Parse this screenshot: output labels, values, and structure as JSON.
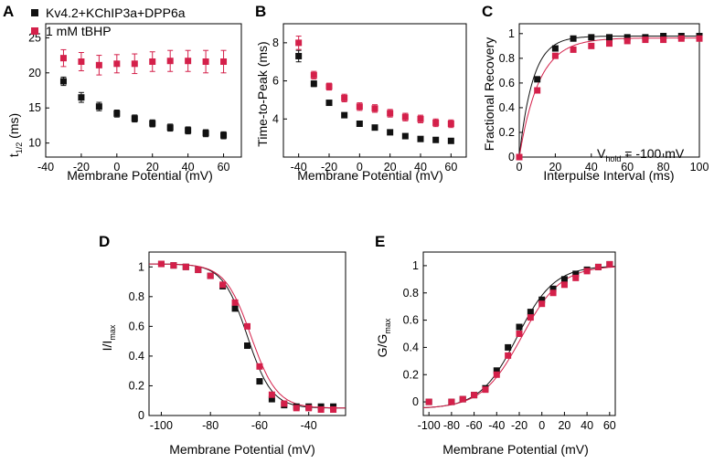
{
  "colors": {
    "control": "#111111",
    "tbhp": "#d4204a"
  },
  "legend": {
    "series_1": "Kv4.2+KChIP3a+DPP6a",
    "series_2": "1 mM tBHP"
  },
  "panels": {
    "A": {
      "letter": "A",
      "ylabel_main": "t",
      "ylabel_sub": "1/2",
      "ylabel_unit": " (ms)",
      "xlabel": "Membrane Potential (mV)"
    },
    "B": {
      "letter": "B",
      "ylabel": "Time-to-Peak (ms)",
      "xlabel": "Membrane Potential (mV)"
    },
    "C": {
      "letter": "C",
      "ylabel": "Fractional Recovery",
      "xlabel": "Interpulse Interval (ms)",
      "annotation_main": "V",
      "annotation_sub": "hold",
      "annotation_rest": " = -100 mV"
    },
    "D": {
      "letter": "D",
      "ylabel_main": "I/I",
      "ylabel_sub": "max",
      "xlabel": "Membrane Potential (mV)"
    },
    "E": {
      "letter": "E",
      "ylabel_main": "G/G",
      "ylabel_sub": "max",
      "xlabel": "Membrane Potential (mV)"
    }
  },
  "chart_data": [
    {
      "panel": "A",
      "type": "scatter",
      "xlim": [
        -40,
        70
      ],
      "ylim": [
        8,
        27
      ],
      "xticks": [
        -40,
        -20,
        0,
        20,
        40,
        60
      ],
      "yticks": [
        10,
        15,
        20,
        25
      ],
      "series": [
        {
          "name": "Kv4.2+KChIP3a+DPP6a",
          "color": "#111111",
          "x": [
            -30,
            -20,
            -10,
            0,
            10,
            20,
            30,
            40,
            50,
            60
          ],
          "y": [
            18.8,
            16.5,
            15.2,
            14.2,
            13.5,
            12.8,
            12.2,
            11.8,
            11.4,
            11.1
          ],
          "err": [
            0.6,
            0.7,
            0.6,
            0.5,
            0.5,
            0.5,
            0.5,
            0.5,
            0.5,
            0.5
          ]
        },
        {
          "name": "1 mM tBHP",
          "color": "#d4204a",
          "x": [
            -30,
            -20,
            -10,
            0,
            10,
            20,
            30,
            40,
            50,
            60
          ],
          "y": [
            22.1,
            21.6,
            21.1,
            21.3,
            21.3,
            21.6,
            21.7,
            21.7,
            21.6,
            21.6
          ],
          "err": [
            1.2,
            1.3,
            1.4,
            1.3,
            1.4,
            1.4,
            1.5,
            1.5,
            1.6,
            1.6
          ]
        }
      ]
    },
    {
      "panel": "B",
      "type": "scatter",
      "xlim": [
        -50,
        70
      ],
      "ylim": [
        2,
        9
      ],
      "xticks": [
        -40,
        -20,
        0,
        20,
        40,
        60
      ],
      "yticks": [
        4,
        6,
        8
      ],
      "series": [
        {
          "name": "Kv4.2+KChIP3a+DPP6a",
          "color": "#111111",
          "x": [
            -40,
            -30,
            -20,
            -10,
            0,
            10,
            20,
            30,
            40,
            50,
            60
          ],
          "y": [
            7.3,
            5.85,
            4.85,
            4.2,
            3.75,
            3.55,
            3.3,
            3.1,
            2.95,
            2.9,
            2.85
          ],
          "err": [
            0.3,
            0.15,
            0.12,
            0.1,
            0.08,
            0.08,
            0.07,
            0.07,
            0.06,
            0.06,
            0.06
          ]
        },
        {
          "name": "1 mM tBHP",
          "color": "#d4204a",
          "x": [
            -40,
            -30,
            -20,
            -10,
            0,
            10,
            20,
            30,
            40,
            50,
            60
          ],
          "y": [
            8.0,
            6.3,
            5.7,
            5.1,
            4.65,
            4.55,
            4.3,
            4.1,
            4.0,
            3.8,
            3.75
          ],
          "err": [
            0.35,
            0.2,
            0.18,
            0.2,
            0.2,
            0.2,
            0.2,
            0.2,
            0.2,
            0.2,
            0.2
          ]
        }
      ]
    },
    {
      "panel": "C",
      "type": "scatter",
      "xlim": [
        0,
        100
      ],
      "ylim": [
        0,
        1.08
      ],
      "xticks": [
        0,
        20,
        40,
        60,
        80,
        100
      ],
      "yticks": [
        0.0,
        0.2,
        0.4,
        0.6,
        0.8,
        1.0
      ],
      "series": [
        {
          "name": "Kv4.2+KChIP3a+DPP6a",
          "color": "#111111",
          "x": [
            0,
            10,
            20,
            30,
            40,
            50,
            60,
            70,
            80,
            90,
            100
          ],
          "y": [
            0.0,
            0.63,
            0.88,
            0.96,
            0.97,
            0.97,
            0.97,
            0.97,
            0.98,
            0.98,
            0.98
          ],
          "fit": {
            "a": 0.98,
            "tau": 7.5
          }
        },
        {
          "name": "1 mM tBHP",
          "color": "#d4204a",
          "x": [
            0,
            10,
            20,
            30,
            40,
            50,
            60,
            70,
            80,
            90,
            100
          ],
          "y": [
            0.0,
            0.54,
            0.82,
            0.87,
            0.9,
            0.92,
            0.94,
            0.95,
            0.95,
            0.96,
            0.96
          ],
          "fit": {
            "a": 0.965,
            "tau": 11
          }
        }
      ]
    },
    {
      "panel": "D",
      "type": "scatter",
      "xlim": [
        -105,
        -25
      ],
      "ylim": [
        0,
        1.1
      ],
      "xticks": [
        -100,
        -80,
        -60,
        -40
      ],
      "yticks": [
        0.0,
        0.2,
        0.4,
        0.6,
        0.8,
        1.0
      ],
      "series": [
        {
          "name": "Kv4.2+KChIP3a+DPP6a",
          "color": "#111111",
          "x": [
            -100,
            -95,
            -90,
            -85,
            -80,
            -75,
            -70,
            -65,
            -60,
            -55,
            -50,
            -45,
            -40,
            -35,
            -30
          ],
          "y": [
            1.02,
            1.01,
            1.0,
            0.98,
            0.94,
            0.87,
            0.72,
            0.47,
            0.23,
            0.11,
            0.07,
            0.06,
            0.06,
            0.06,
            0.06
          ],
          "fit": {
            "v50": -65,
            "k": 5.0
          }
        },
        {
          "name": "1 mM tBHP",
          "color": "#d4204a",
          "x": [
            -100,
            -95,
            -90,
            -85,
            -80,
            -75,
            -70,
            -65,
            -60,
            -55,
            -50,
            -45,
            -40,
            -35,
            -30
          ],
          "y": [
            1.02,
            1.01,
            1.0,
            0.98,
            0.94,
            0.88,
            0.76,
            0.6,
            0.33,
            0.14,
            0.08,
            0.05,
            0.05,
            0.04,
            0.04
          ],
          "fit": {
            "v50": -63.5,
            "k": 5.3
          }
        }
      ]
    },
    {
      "panel": "E",
      "type": "scatter",
      "xlim": [
        -105,
        65
      ],
      "ylim": [
        -0.1,
        1.1
      ],
      "xticks": [
        -100,
        -80,
        -60,
        -40,
        -20,
        0,
        20,
        40,
        60
      ],
      "yticks": [
        0.0,
        0.2,
        0.4,
        0.6,
        0.8,
        1.0
      ],
      "series": [
        {
          "name": "Kv4.2+KChIP3a+DPP6a",
          "color": "#111111",
          "x": [
            -100,
            -80,
            -70,
            -60,
            -50,
            -40,
            -30,
            -20,
            -10,
            0,
            10,
            20,
            30,
            40,
            50,
            60
          ],
          "y": [
            0.0,
            0.0,
            0.02,
            0.05,
            0.1,
            0.23,
            0.4,
            0.55,
            0.66,
            0.75,
            0.83,
            0.9,
            0.94,
            0.97,
            0.99,
            1.01
          ],
          "fit": {
            "v50": -22,
            "k": 16.5
          }
        },
        {
          "name": "1 mM tBHP",
          "color": "#d4204a",
          "x": [
            -100,
            -80,
            -70,
            -60,
            -50,
            -40,
            -30,
            -20,
            -10,
            0,
            10,
            20,
            30,
            40,
            50,
            60
          ],
          "y": [
            0.0,
            0.0,
            0.02,
            0.05,
            0.09,
            0.2,
            0.34,
            0.5,
            0.62,
            0.72,
            0.8,
            0.86,
            0.91,
            0.96,
            0.99,
            1.01
          ],
          "fit": {
            "v50": -18,
            "k": 17.5
          }
        }
      ]
    }
  ]
}
